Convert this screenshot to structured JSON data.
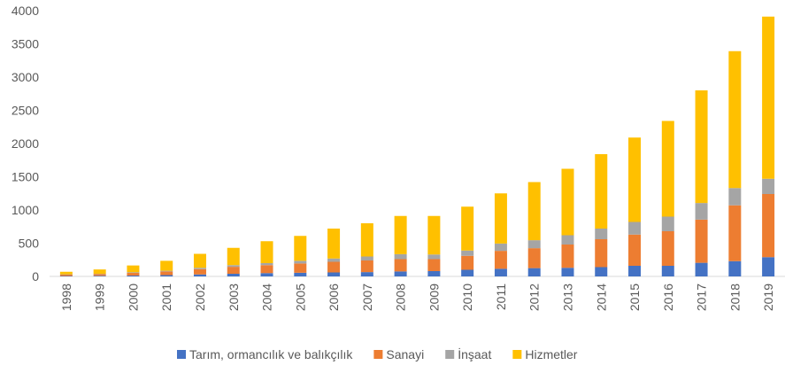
{
  "chart_data": {
    "type": "stacked-bar",
    "categories": [
      "1998",
      "1999",
      "2000",
      "2001",
      "2002",
      "2003",
      "2004",
      "2005",
      "2006",
      "2007",
      "2008",
      "2009",
      "2010",
      "2011",
      "2012",
      "2013",
      "2014",
      "2015",
      "2016",
      "2017",
      "2018",
      "2019"
    ],
    "series": [
      {
        "name": "Tarım, ormancılık ve balıkçılık",
        "color": "#4472c4",
        "values": [
          7,
          10,
          13,
          20,
          30,
          40,
          50,
          55,
          60,
          65,
          75,
          80,
          100,
          115,
          125,
          130,
          140,
          160,
          160,
          205,
          230,
          290
        ]
      },
      {
        "name": "Sanayi",
        "color": "#ed7d31",
        "values": [
          20,
          25,
          40,
          55,
          80,
          105,
          120,
          140,
          160,
          175,
          185,
          180,
          210,
          270,
          300,
          350,
          420,
          470,
          520,
          650,
          840,
          950
        ]
      },
      {
        "name": "İnşaat",
        "color": "#a5a5a5",
        "values": [
          5,
          5,
          10,
          10,
          20,
          25,
          30,
          40,
          50,
          60,
          75,
          70,
          80,
          110,
          120,
          140,
          160,
          190,
          220,
          250,
          260,
          230
        ]
      },
      {
        "name": "Hizmetler",
        "color": "#ffc000",
        "values": [
          38,
          65,
          102,
          150,
          210,
          260,
          330,
          375,
          450,
          500,
          575,
          580,
          660,
          755,
          875,
          1000,
          1120,
          1270,
          1440,
          1695,
          2060,
          2440
        ]
      }
    ],
    "ylim": [
      0,
      4000
    ],
    "yticks": [
      0,
      500,
      1000,
      1500,
      2000,
      2500,
      3000,
      3500,
      4000
    ],
    "grid": false
  }
}
